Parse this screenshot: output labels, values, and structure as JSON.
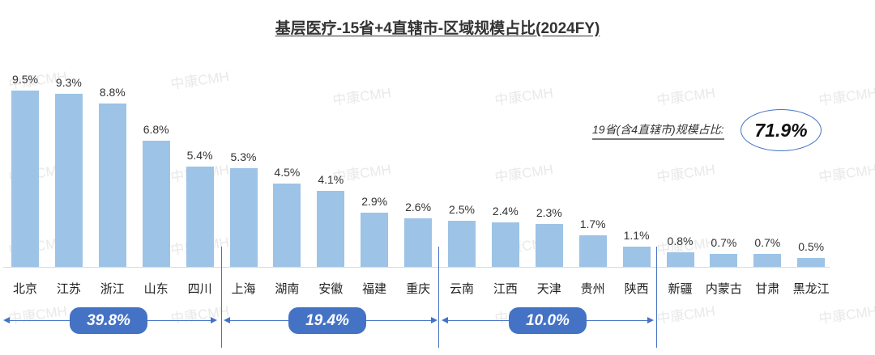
{
  "chart_data": {
    "type": "bar",
    "title": "基层医疗-15省+4直辖市-区域规模占比(2024FY)",
    "xlabel": "",
    "ylabel": "",
    "categories": [
      "北京",
      "江苏",
      "浙江",
      "山东",
      "四川",
      "上海",
      "湖南",
      "安徽",
      "福建",
      "重庆",
      "云南",
      "江西",
      "天津",
      "贵州",
      "陕西",
      "新疆",
      "内蒙古",
      "甘肃",
      "黑龙江"
    ],
    "values": [
      9.5,
      9.3,
      8.8,
      6.8,
      5.4,
      5.3,
      4.5,
      4.1,
      2.9,
      2.6,
      2.5,
      2.4,
      2.3,
      1.7,
      1.1,
      0.8,
      0.7,
      0.7,
      0.5
    ],
    "value_labels": [
      "9.5%",
      "9.3%",
      "8.8%",
      "6.8%",
      "5.4%",
      "5.3%",
      "4.5%",
      "4.1%",
      "2.9%",
      "2.6%",
      "2.5%",
      "2.4%",
      "2.3%",
      "1.7%",
      "1.1%",
      "0.8%",
      "0.7%",
      "0.7%",
      "0.5%"
    ],
    "unit": "%",
    "grid": false,
    "legend": null,
    "bar_color": "#9dc3e6",
    "groups": [
      {
        "label": "39.8%",
        "range": [
          "北京",
          "四川"
        ]
      },
      {
        "label": "19.4%",
        "range": [
          "上海",
          "重庆"
        ]
      },
      {
        "label": "10.0%",
        "range": [
          "云南",
          "陕西"
        ]
      }
    ],
    "annotations": [
      {
        "text": "19省(含4直辖市)规模占比:",
        "value": "71.9%"
      }
    ]
  },
  "title": "基层医疗-15省+4直辖市-区域规模占比(2024FY)",
  "summary": {
    "label": "19省(含4直辖市)规模占比:",
    "value": "71.9%"
  },
  "groups": [
    "39.8%",
    "19.4%",
    "10.0%"
  ],
  "watermark": "中康CMH",
  "accent_color": "#4472c4"
}
